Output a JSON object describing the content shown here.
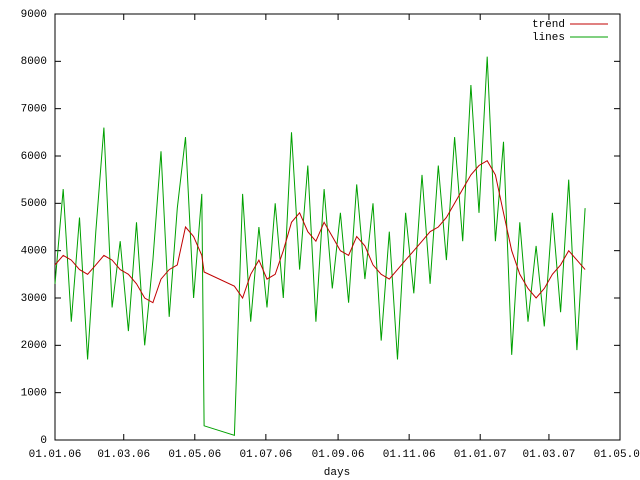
{
  "chart_data": {
    "type": "line",
    "x": [
      "01.01.06",
      "08.01.06",
      "15.01.06",
      "22.01.06",
      "29.01.06",
      "05.02.06",
      "12.02.06",
      "19.02.06",
      "26.02.06",
      "05.03.06",
      "12.03.06",
      "19.03.06",
      "26.03.06",
      "02.04.06",
      "09.04.06",
      "16.04.06",
      "23.04.06",
      "30.04.06",
      "07.05.06",
      "09.05.06",
      "04.06.06",
      "11.06.06",
      "18.06.06",
      "25.06.06",
      "02.07.06",
      "09.07.06",
      "16.07.06",
      "23.07.06",
      "30.07.06",
      "06.08.06",
      "13.08.06",
      "20.08.06",
      "27.08.06",
      "03.09.06",
      "10.09.06",
      "17.09.06",
      "24.09.06",
      "01.10.06",
      "08.10.06",
      "15.10.06",
      "22.10.06",
      "29.10.06",
      "05.11.06",
      "12.11.06",
      "19.11.06",
      "26.11.06",
      "03.12.06",
      "10.12.06",
      "17.12.06",
      "24.12.06",
      "31.12.06",
      "07.01.07",
      "14.01.07",
      "21.01.07",
      "28.01.07",
      "04.02.07",
      "11.02.07",
      "18.02.07",
      "25.02.07",
      "04.03.07",
      "11.03.07",
      "18.03.07",
      "25.03.07",
      "01.04.07"
    ],
    "series": [
      {
        "name": "trend",
        "color": "#c00000",
        "values": [
          3700,
          3900,
          3800,
          3600,
          3500,
          3700,
          3900,
          3800,
          3600,
          3500,
          3300,
          3000,
          2900,
          3400,
          3600,
          3700,
          4500,
          4300,
          3900,
          3550,
          3250,
          3000,
          3500,
          3800,
          3400,
          3500,
          4000,
          4600,
          4800,
          4400,
          4200,
          4600,
          4300,
          4000,
          3900,
          4300,
          4100,
          3700,
          3500,
          3400,
          3600,
          3800,
          4000,
          4200,
          4400,
          4500,
          4700,
          5000,
          5300,
          5600,
          5800,
          5900,
          5600,
          4800,
          4000,
          3500,
          3200,
          3000,
          3200,
          3500,
          3700,
          4000,
          3800,
          3600
        ]
      },
      {
        "name": "lines",
        "color": "#00a000",
        "values": [
          3300,
          5300,
          2500,
          4700,
          1700,
          4400,
          6600,
          2800,
          4200,
          2300,
          4600,
          2000,
          3800,
          6100,
          2600,
          4900,
          6400,
          3000,
          5200,
          300,
          100,
          5200,
          2500,
          4500,
          2800,
          5000,
          3000,
          6500,
          3600,
          5800,
          2500,
          5300,
          3200,
          4800,
          2900,
          5400,
          3400,
          5000,
          2100,
          4400,
          1700,
          4800,
          3100,
          5600,
          3300,
          5800,
          3800,
          6400,
          4200,
          7500,
          4800,
          8100,
          4200,
          6300,
          1800,
          4600,
          2500,
          4100,
          2400,
          4800,
          2700,
          5500,
          1900,
          4900
        ]
      }
    ],
    "xlabel": "days",
    "xlim": [
      "01.01.06",
      "01.05.07"
    ],
    "xticks": [
      "01.01.06",
      "01.03.06",
      "01.05.06",
      "01.07.06",
      "01.09.06",
      "01.11.06",
      "01.01.07",
      "01.03.07",
      "01.05.07"
    ],
    "ylim": [
      0,
      9000
    ],
    "yticks": [
      0,
      1000,
      2000,
      3000,
      4000,
      5000,
      6000,
      7000,
      8000,
      9000
    ],
    "legend": "top-right"
  }
}
